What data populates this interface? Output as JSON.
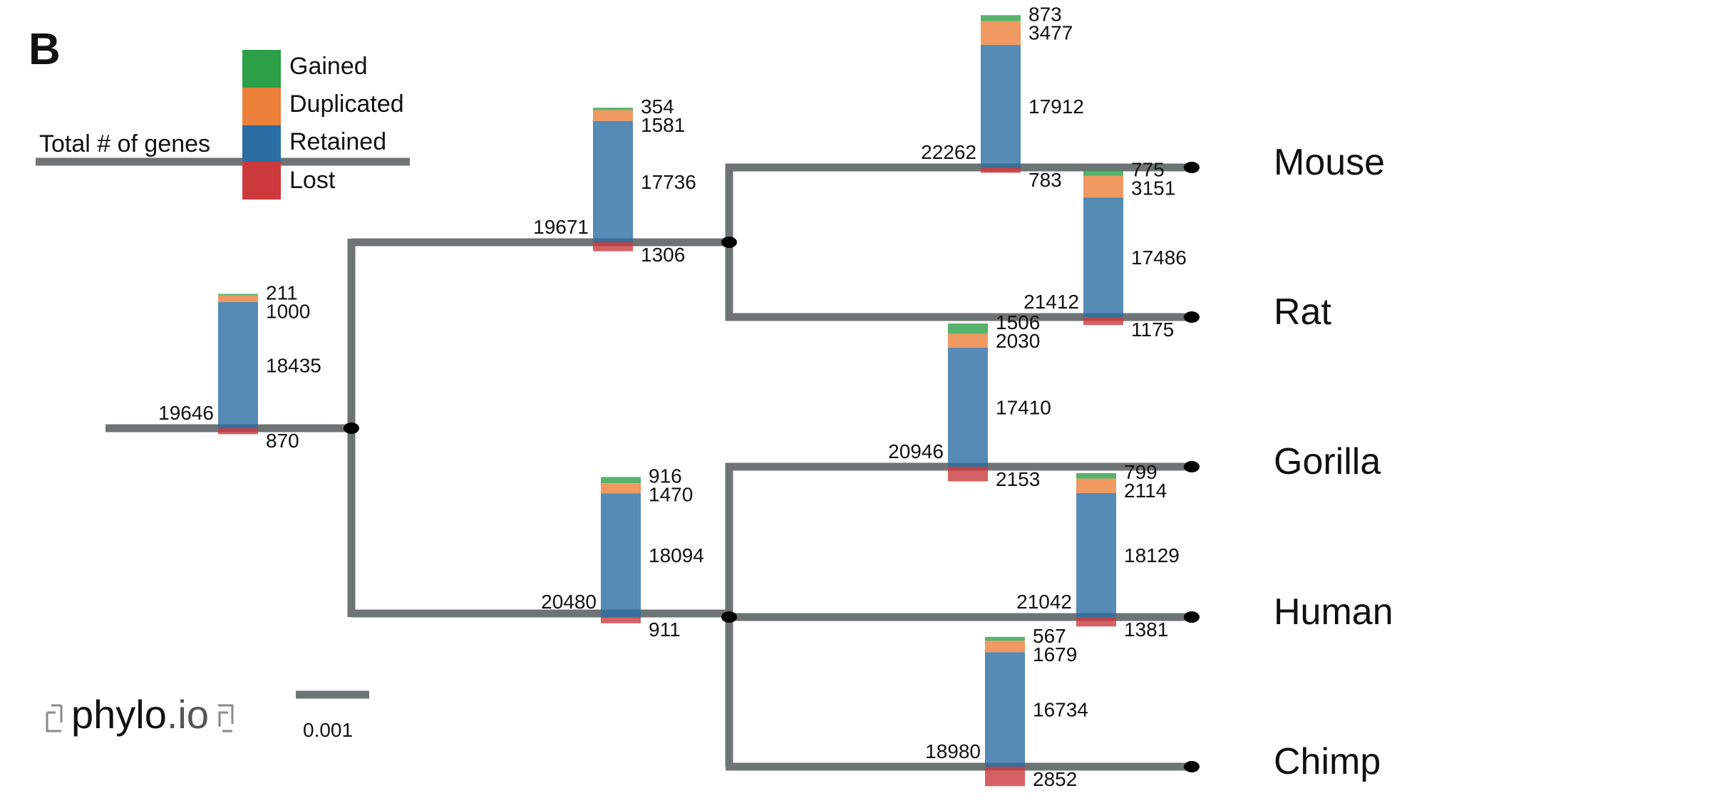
{
  "panel_label": "B",
  "colors": {
    "branch": "#6e7473",
    "gained": "#2ca048",
    "duplicated": "#ec7f3a",
    "retained": "#2b6ea3",
    "lost": "#cc3a3d"
  },
  "legend": {
    "axis_label": "Total # of genes",
    "categories": [
      {
        "key": "gained",
        "label": "Gained"
      },
      {
        "key": "duplicated",
        "label": "Duplicated"
      },
      {
        "key": "retained",
        "label": "Retained"
      },
      {
        "key": "lost",
        "label": "Lost"
      }
    ]
  },
  "branches": [
    {
      "id": "root",
      "total": 19646,
      "gained": 211,
      "duplicated": 1000,
      "retained": 18435,
      "lost": 870
    },
    {
      "id": "rodents",
      "total": 19671,
      "gained": 354,
      "duplicated": 1581,
      "retained": 17736,
      "lost": 1306
    },
    {
      "id": "primates",
      "total": 20480,
      "gained": 916,
      "duplicated": 1470,
      "retained": 18094,
      "lost": 911
    },
    {
      "id": "mouse",
      "taxon": "Mouse",
      "total": 22262,
      "gained": 873,
      "duplicated": 3477,
      "retained": 17912,
      "lost": 783
    },
    {
      "id": "rat",
      "taxon": "Rat",
      "total": 21412,
      "gained": 775,
      "duplicated": 3151,
      "retained": 17486,
      "lost": 1175
    },
    {
      "id": "gorilla",
      "taxon": "Gorilla",
      "total": 20946,
      "gained": 1506,
      "duplicated": 2030,
      "retained": 17410,
      "lost": 2153
    },
    {
      "id": "human",
      "taxon": "Human",
      "total": 21042,
      "gained": 799,
      "duplicated": 2114,
      "retained": 18129,
      "lost": 1381
    },
    {
      "id": "chimp",
      "taxon": "Chimp",
      "total": 18980,
      "gained": 567,
      "duplicated": 1679,
      "retained": 16734,
      "lost": 2852
    }
  ],
  "scale_bar": {
    "value": 0.001,
    "label": "0.001"
  },
  "logo": {
    "text_main": "phylo",
    "text_suffix": ".io"
  }
}
